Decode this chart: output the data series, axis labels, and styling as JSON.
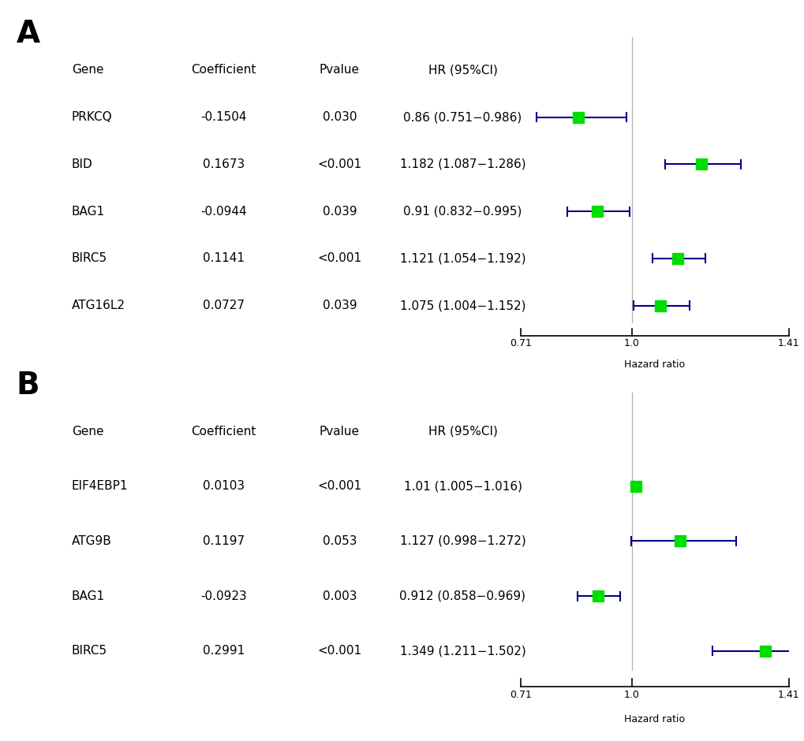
{
  "panel_A": {
    "label": "A",
    "genes": [
      "PRKCQ",
      "BID",
      "BAG1",
      "BIRC5",
      "ATG16L2"
    ],
    "coefficients": [
      "-0.1504",
      "0.1673",
      "-0.0944",
      "0.1141",
      "0.0727"
    ],
    "pvalues": [
      "0.030",
      "<0.001",
      "0.039",
      "<0.001",
      "0.039"
    ],
    "hr_labels": [
      "0.86 (0.751−0.986)",
      "1.182 (1.087−1.286)",
      "0.91 (0.832−0.995)",
      "1.121 (1.054−1.192)",
      "1.075 (1.004−1.152)"
    ],
    "hr": [
      0.86,
      1.182,
      0.91,
      1.121,
      1.075
    ],
    "ci_low": [
      0.751,
      1.087,
      0.832,
      1.054,
      1.004
    ],
    "ci_high": [
      0.986,
      1.286,
      0.995,
      1.192,
      1.152
    ]
  },
  "panel_B": {
    "label": "B",
    "genes": [
      "EIF4EBP1",
      "ATG9B",
      "BAG1",
      "BIRC5"
    ],
    "coefficients": [
      "0.0103",
      "0.1197",
      "-0.0923",
      "0.2991"
    ],
    "pvalues": [
      "<0.001",
      "0.053",
      "0.003",
      "<0.001"
    ],
    "hr_labels": [
      "1.01 (1.005−1.016)",
      "1.127 (0.998−1.272)",
      "0.912 (0.858−0.969)",
      "1.349 (1.211−1.502)"
    ],
    "hr": [
      1.01,
      1.127,
      0.912,
      1.349
    ],
    "ci_low": [
      1.005,
      0.998,
      0.858,
      1.211
    ],
    "ci_high": [
      1.016,
      1.272,
      0.969,
      1.502
    ]
  },
  "xmin": 0.71,
  "xmax": 1.41,
  "xref": 1.0,
  "xticks": [
    0.71,
    1.0,
    1.41
  ],
  "xlabel": "Hazard ratio",
  "col_headers": [
    "Gene",
    "Coefficient",
    "Pvalue",
    "HR (95%CI)"
  ],
  "box_color": "#00dd00",
  "line_color": "#00008B",
  "ref_line_color": "#b0b0b0",
  "axis_color": "#000000",
  "text_fontsize": 11,
  "panel_label_fontsize": 28
}
